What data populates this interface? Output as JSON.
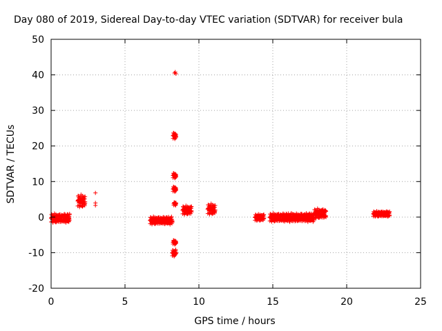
{
  "chart_data": {
    "type": "scatter",
    "title": "Day 080 of 2019, Sidereal Day-to-day VTEC variation (SDTVAR) for receiver bula",
    "xlabel": "GPS time / hours",
    "ylabel": "SDTVAR / TECUs",
    "xlim": [
      0,
      25
    ],
    "ylim": [
      -20,
      50
    ],
    "xticks": [
      0,
      5,
      10,
      15,
      20,
      25
    ],
    "yticks": [
      -20,
      -10,
      0,
      10,
      20,
      30,
      40,
      50
    ],
    "grid": true,
    "marker": "+",
    "series_color": "#ff0000",
    "clusters": [
      {
        "x0": 0.0,
        "x1": 1.25,
        "ylo": -1.8,
        "yhi": 1.2
      },
      {
        "x0": 1.8,
        "x1": 2.3,
        "ylo": 2.5,
        "yhi": 6.6
      },
      {
        "x0": 6.7,
        "x1": 8.2,
        "ylo": -2.2,
        "yhi": 0.3
      },
      {
        "x0": 8.25,
        "x1": 8.45,
        "ylo": 21.8,
        "yhi": 24.0
      },
      {
        "x0": 8.25,
        "x1": 8.45,
        "ylo": 10.8,
        "yhi": 12.6
      },
      {
        "x0": 8.25,
        "x1": 8.45,
        "ylo": 7.0,
        "yhi": 8.8
      },
      {
        "x0": 8.3,
        "x1": 8.45,
        "ylo": 3.2,
        "yhi": 4.3
      },
      {
        "x0": 8.25,
        "x1": 8.45,
        "ylo": -7.8,
        "yhi": -6.3
      },
      {
        "x0": 8.2,
        "x1": 8.45,
        "ylo": -11.2,
        "yhi": -9.0
      },
      {
        "x0": 8.9,
        "x1": 9.5,
        "ylo": 0.5,
        "yhi": 3.4
      },
      {
        "x0": 10.6,
        "x1": 11.1,
        "ylo": 0.5,
        "yhi": 4.0
      },
      {
        "x0": 13.8,
        "x1": 14.4,
        "ylo": -1.2,
        "yhi": 1.0
      },
      {
        "x0": 14.8,
        "x1": 17.8,
        "ylo": -1.5,
        "yhi": 1.3
      },
      {
        "x0": 17.8,
        "x1": 18.6,
        "ylo": -0.6,
        "yhi": 2.6
      },
      {
        "x0": 21.8,
        "x1": 22.9,
        "ylo": 0.0,
        "yhi": 1.8
      }
    ],
    "points": [
      {
        "x": 3.0,
        "y": 6.8
      },
      {
        "x": 3.0,
        "y": 4.0
      },
      {
        "x": 3.0,
        "y": 3.3
      },
      {
        "x": 8.4,
        "y": 40.8
      },
      {
        "x": 8.45,
        "y": 40.3
      },
      {
        "x": 8.35,
        "y": 40.5
      }
    ]
  }
}
